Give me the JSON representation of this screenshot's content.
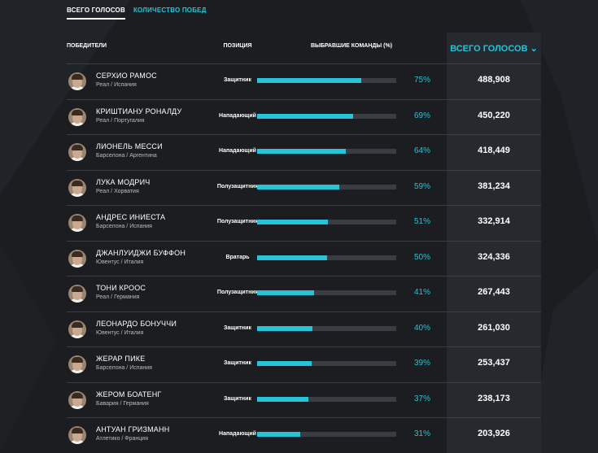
{
  "tabs": [
    {
      "label": "ВСЕГО ГОЛОСОВ",
      "active": true
    },
    {
      "label": "КОЛИЧЕСТВО ПОБЕД",
      "active": false
    }
  ],
  "header": {
    "winners": "ПОБЕДИТЕЛИ",
    "position": "ПОЗИЦИЯ",
    "teams": "ВЫБРАВШИЕ КОМАНДЫ (%)",
    "votes": "ВСЕГО ГОЛОСОВ ⌄"
  },
  "colors": {
    "accent": "#27c3d6",
    "background": "#1b1d20",
    "votes_column": "#262a2e"
  },
  "players": [
    {
      "name": "СЕРХИО РАМОС",
      "club": "Реал / Испания",
      "position": "Защитник",
      "percent": 75,
      "percent_label": "75%",
      "votes": "488,908"
    },
    {
      "name": "КРИШТИАНУ РОНАЛДУ",
      "club": "Реал / Португалия",
      "position": "Нападающий",
      "percent": 69,
      "percent_label": "69%",
      "votes": "450,220"
    },
    {
      "name": "ЛИОНЕЛЬ МЕССИ",
      "club": "Барселона / Аргентина",
      "position": "Нападающий",
      "percent": 64,
      "percent_label": "64%",
      "votes": "418,449"
    },
    {
      "name": "ЛУКА МОДРИЧ",
      "club": "Реал / Хорватия",
      "position": "Полузащитник",
      "percent": 59,
      "percent_label": "59%",
      "votes": "381,234"
    },
    {
      "name": "АНДРЕС ИНИЕСТА",
      "club": "Барселона / Испания",
      "position": "Полузащитник",
      "percent": 51,
      "percent_label": "51%",
      "votes": "332,914"
    },
    {
      "name": "ДЖАНЛУИДЖИ БУФФОН",
      "club": "Ювентус / Италия",
      "position": "Вратарь",
      "percent": 50,
      "percent_label": "50%",
      "votes": "324,336"
    },
    {
      "name": "ТОНИ КРООС",
      "club": "Реал / Германия",
      "position": "Полузащитник",
      "percent": 41,
      "percent_label": "41%",
      "votes": "267,443"
    },
    {
      "name": "ЛЕОНАРДО БОНУЧЧИ",
      "club": "Ювентус / Италия",
      "position": "Защитник",
      "percent": 40,
      "percent_label": "40%",
      "votes": "261,030"
    },
    {
      "name": "ЖЕРАР ПИКЕ",
      "club": "Барселона / Испания",
      "position": "Защитник",
      "percent": 39,
      "percent_label": "39%",
      "votes": "253,437"
    },
    {
      "name": "ЖЕРОМ БОАТЕНГ",
      "club": "Бавария / Германия",
      "position": "Защитник",
      "percent": 37,
      "percent_label": "37%",
      "votes": "238,173"
    },
    {
      "name": "АНТУАН ГРИЗМАНН",
      "club": "Атлетико / Франция",
      "position": "Нападающий",
      "percent": 31,
      "percent_label": "31%",
      "votes": "203,926"
    }
  ]
}
